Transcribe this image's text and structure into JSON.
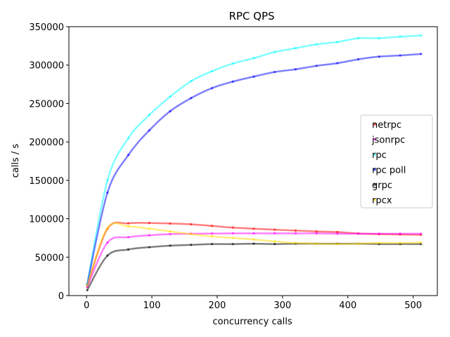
{
  "chart_data": {
    "type": "scatter",
    "title": "RPC QPS",
    "xlabel": "concurrency calls",
    "ylabel": "calls / s",
    "xlim": [
      -27,
      537
    ],
    "ylim": [
      0,
      350000
    ],
    "xticks": [
      0,
      100,
      200,
      300,
      400,
      500
    ],
    "yticks": [
      0,
      50000,
      100000,
      150000,
      200000,
      250000,
      300000,
      350000
    ],
    "grid": false,
    "legend_position": "center-right",
    "x": [
      1,
      32,
      64,
      96,
      128,
      160,
      192,
      224,
      256,
      288,
      320,
      352,
      384,
      416,
      448,
      480,
      512
    ],
    "series": [
      {
        "name": "netrpc",
        "color": "#ff0000",
        "values": [
          12000,
          87000,
          94000,
          94500,
          93800,
          92800,
          90700,
          88500,
          87000,
          85800,
          84600,
          83500,
          82700,
          80800,
          80000,
          79500,
          79200
        ]
      },
      {
        "name": "jsonrpc",
        "color": "#ff00ff",
        "values": [
          11000,
          69000,
          76000,
          78500,
          80000,
          80500,
          80800,
          81000,
          81000,
          81000,
          81000,
          81000,
          80500,
          80500,
          80500,
          80500,
          80500
        ]
      },
      {
        "name": "rpc",
        "color": "#00ffff",
        "values": [
          15000,
          150000,
          205000,
          235000,
          259000,
          279000,
          292000,
          302000,
          309000,
          317000,
          322000,
          327000,
          330000,
          335000,
          335000,
          337000,
          338500
        ]
      },
      {
        "name": "rpc poll",
        "color": "#0000ff",
        "values": [
          14000,
          134000,
          183000,
          215000,
          240000,
          257000,
          270000,
          278500,
          285000,
          291000,
          294500,
          299000,
          302500,
          307500,
          311000,
          312500,
          314500
        ]
      },
      {
        "name": "grpc",
        "color": "#000000",
        "values": [
          7000,
          52000,
          60000,
          63000,
          65000,
          66000,
          67000,
          67000,
          67500,
          67000,
          67500,
          67500,
          67500,
          67500,
          67000,
          67000,
          67000
        ]
      },
      {
        "name": "rpcx",
        "color": "#ffdd00",
        "values": [
          13000,
          88000,
          90000,
          87000,
          83500,
          80000,
          77000,
          75000,
          73000,
          70500,
          68500,
          67500,
          67000,
          67500,
          68500,
          68500,
          69000
        ]
      }
    ]
  }
}
